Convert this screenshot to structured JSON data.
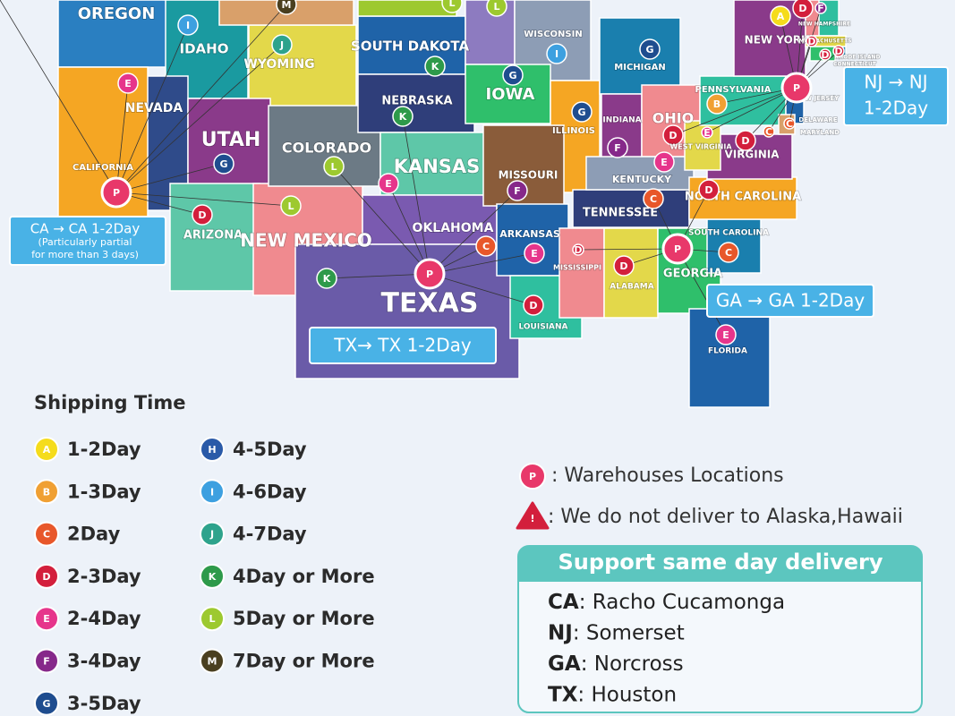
{
  "map": {
    "states": [
      {
        "name": "OREGON"
      },
      {
        "name": "IDAHO",
        "badge": "I"
      },
      {
        "name": "WYOMING",
        "badge": "J"
      },
      {
        "badge": "M"
      },
      {
        "name": "NEVADA",
        "badge": "E"
      },
      {
        "name": "UTAH",
        "badge": "G"
      },
      {
        "name": "CALIFORNIA",
        "badge": "P"
      },
      {
        "name": "ARIZONA",
        "badge": "D"
      },
      {
        "name": "NEW MEXICO",
        "badge": "K"
      },
      {
        "badge": "L"
      },
      {
        "name": "COLORADO",
        "badge": "L"
      },
      {
        "name": "SOUTH DAKOTA",
        "badge": "K"
      },
      {
        "name": "NEBRASKA",
        "badge": "K"
      },
      {
        "name": "KANSAS",
        "badge": "E"
      },
      {
        "name": "OKLAHOMA",
        "badge": "C"
      },
      {
        "name": "TEXAS",
        "badge": "P"
      },
      {
        "badge": "L"
      },
      {
        "badge": "L"
      },
      {
        "name": "WISCONSIN",
        "badge": "I"
      },
      {
        "name": "IOWA",
        "badge": "G"
      },
      {
        "name": "ILLINOIS",
        "badge": "G"
      },
      {
        "name": "MICHIGAN",
        "badge": "G"
      },
      {
        "name": "INDIANA",
        "badge": "F"
      },
      {
        "name": "OHIO",
        "badge": "D"
      },
      {
        "name": "MISSOURI",
        "badge": "F"
      },
      {
        "name": "ARKANSAS",
        "badge": "E"
      },
      {
        "name": "LOUISIANA",
        "badge": "D"
      },
      {
        "name": "MISSISSIPPI",
        "badge": "D"
      },
      {
        "name": "ALABAMA",
        "badge": "D"
      },
      {
        "name": "TENNESSEE",
        "badge": "C"
      },
      {
        "name": "KENTUCKY",
        "badge": "E"
      },
      {
        "name": "GEORGIA",
        "badge": "P"
      },
      {
        "name": "SOUTH CAROLINA",
        "badge": "C"
      },
      {
        "name": "NORTH CAROLINA",
        "badge": "D"
      },
      {
        "name": "FLORIDA",
        "badge": "E"
      },
      {
        "name": "VIRGINIA",
        "badge": "D"
      },
      {
        "name": "WEST VIRGINIA",
        "badge": "E"
      },
      {
        "name": "PENNSYLVANIA",
        "badge": "B"
      },
      {
        "name": "NEW YORK",
        "badge": "A"
      },
      {
        "name": "NEW JERSEY",
        "badge": "P"
      },
      {
        "name": "DELAWARE",
        "badge": "C"
      },
      {
        "name": "MARYLAND",
        "badge": "C"
      },
      {
        "badge": "D"
      },
      {
        "name": "NEW HAMPSHIRE",
        "badge": "F"
      },
      {
        "name": "MASSACHUSETTS",
        "badge": "D"
      },
      {
        "name": "RHODE ISLAND",
        "badge": "D"
      },
      {
        "name": "CONNECTICUT",
        "badge": "D"
      }
    ],
    "callouts": {
      "ca": {
        "text": "CA → CA 1-2Day",
        "note": [
          "(Particularly partial",
          "for more than 3 days)"
        ]
      },
      "tx": {
        "text": "TX→ TX 1-2Day"
      },
      "ga": {
        "text": "GA → GA 1-2Day"
      },
      "nj": {
        "lines": [
          "NJ → NJ",
          "1-2Day"
        ]
      }
    }
  },
  "legend": {
    "title": "Shipping Time",
    "items": [
      {
        "letter": "A",
        "label": "1-2Day",
        "color": "#f5dc1c"
      },
      {
        "letter": "B",
        "label": "1-3Day",
        "color": "#f0a033"
      },
      {
        "letter": "C",
        "label": "2Day",
        "color": "#e8572a"
      },
      {
        "letter": "D",
        "label": "2-3Day",
        "color": "#d31f3c"
      },
      {
        "letter": "E",
        "label": "2-4Day",
        "color": "#e6358b"
      },
      {
        "letter": "F",
        "label": "3-4Day",
        "color": "#86288a"
      },
      {
        "letter": "G",
        "label": "3-5Day",
        "color": "#1f4d8f"
      },
      {
        "letter": "H",
        "label": "4-5Day",
        "color": "#2a5aa8"
      },
      {
        "letter": "I",
        "label": "4-6Day",
        "color": "#3da0e0"
      },
      {
        "letter": "J",
        "label": "4-7Day",
        "color": "#2ea38c"
      },
      {
        "letter": "K",
        "label": "4Day or More",
        "color": "#2e9a4a"
      },
      {
        "letter": "L",
        "label": "5Day or More",
        "color": "#9dc92f"
      },
      {
        "letter": "M",
        "label": "7Day or More",
        "color": "#4a3f1f"
      }
    ]
  },
  "notes": {
    "warehouse": {
      "letter": "P",
      "text": ": Warehouses Locations",
      "color": "#e8386a"
    },
    "warning": {
      "icon": "!",
      "text": ": We do not deliver to Alaska,Hawaii"
    }
  },
  "same_day": {
    "title": "Support same day delivery",
    "rows": [
      {
        "state": "CA",
        "place": ": Racho Cucamonga"
      },
      {
        "state": "NJ",
        "place": ": Somerset"
      },
      {
        "state": "GA",
        "place": ": Norcross"
      },
      {
        "state": "TX",
        "place": ": Houston"
      }
    ]
  }
}
